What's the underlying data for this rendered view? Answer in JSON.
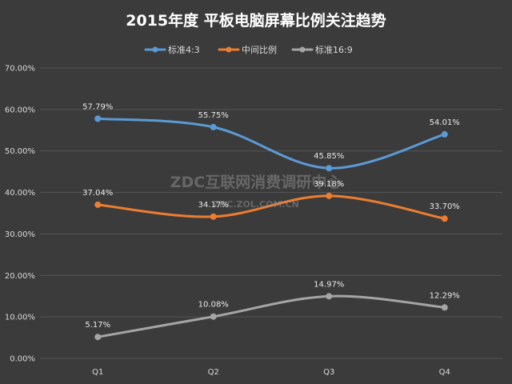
{
  "chart_data": {
    "type": "line",
    "title": "2015年度 平板电脑屏幕比例关注趋势",
    "categories": [
      "Q1",
      "Q2",
      "Q3",
      "Q4"
    ],
    "series": [
      {
        "name": "标准4:3",
        "color": "#5b9bd5",
        "values": [
          57.79,
          55.75,
          45.85,
          54.01
        ],
        "labels": [
          "57.79%",
          "55.75%",
          "45.85%",
          "54.01%"
        ]
      },
      {
        "name": "中间比例",
        "color": "#ed7d31",
        "values": [
          37.04,
          34.17,
          39.18,
          33.7
        ],
        "labels": [
          "37.04%",
          "34.17%",
          "39.18%",
          "33.70%"
        ]
      },
      {
        "name": "标准16:9",
        "color": "#a5a5a5",
        "values": [
          5.17,
          10.08,
          14.97,
          12.29
        ],
        "labels": [
          "5.17%",
          "10.08%",
          "14.97%",
          "12.29%"
        ]
      }
    ],
    "ylim": [
      0,
      70
    ],
    "yticks": [
      0,
      10,
      20,
      30,
      40,
      50,
      60,
      70
    ],
    "ytick_labels": [
      "0.00%",
      "10.00%",
      "20.00%",
      "30.00%",
      "40.00%",
      "50.00%",
      "60.00%",
      "70.00%"
    ],
    "grid": true,
    "legend_position": "top",
    "xlabel": "",
    "ylabel": ""
  },
  "watermark": {
    "line1": "ZDC互联网消费调研中心",
    "line2": "ZDC.ZOL.COM.CN"
  }
}
